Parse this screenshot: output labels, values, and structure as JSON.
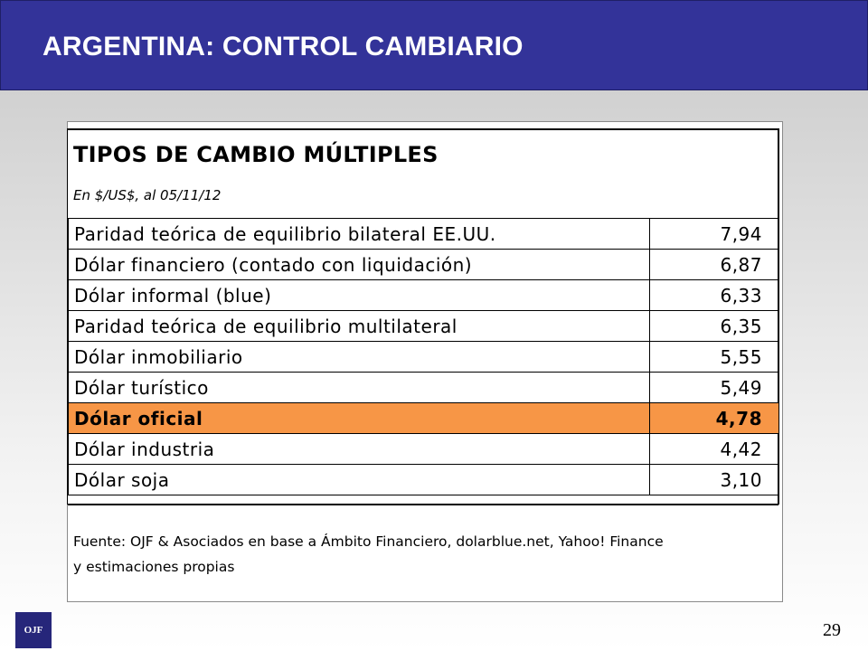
{
  "header": {
    "title": "ARGENTINA:  CONTROL  CAMBIARIO"
  },
  "table": {
    "title": "TIPOS DE CAMBIO MÚLTIPLES",
    "subtitle": "En $/US$, al 05/11/12",
    "rows": [
      {
        "label": "Paridad teórica de equilibrio bilateral EE.UU.",
        "value": "7,94",
        "highlight": false
      },
      {
        "label": "Dólar financiero (contado con liquidación)",
        "value": "6,87",
        "highlight": false
      },
      {
        "label": "Dólar informal (blue)",
        "value": "6,33",
        "highlight": false
      },
      {
        "label": "Paridad teórica de equilibrio multilateral",
        "value": "6,35",
        "highlight": false
      },
      {
        "label": "Dólar inmobiliario",
        "value": "5,55",
        "highlight": false
      },
      {
        "label": "Dólar turístico",
        "value": "5,49",
        "highlight": false
      },
      {
        "label": "Dólar oficial",
        "value": "4,78",
        "highlight": true
      },
      {
        "label": "Dólar industria",
        "value": "4,42",
        "highlight": false
      },
      {
        "label": "Dólar soja",
        "value": "3,10",
        "highlight": false
      }
    ],
    "source_line1": "Fuente: OJF & Asociados en base a Ámbito Financiero, dolarblue.net, Yahoo! Finance",
    "source_line2": " y estimaciones propias"
  },
  "footer": {
    "logo": "OJF",
    "page_number": "29"
  },
  "colors": {
    "header_bg": "#333399",
    "highlight": "#f79646"
  }
}
